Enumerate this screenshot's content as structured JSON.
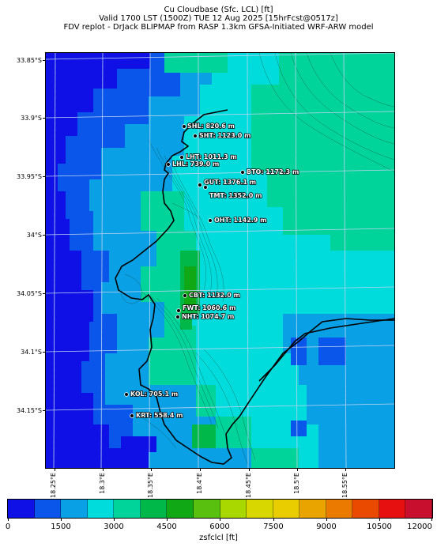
{
  "title_lines": [
    "Cu Cloudbase (Sfc. LCL) [ft]",
    "Valid 1700 LST (1500Z) TUE 12 Aug 2025 [15hrFcst@0517z]",
    "FDV replot - DrJack BLIPMAP from RASP 1.3km GFSA-Initiated WRF-ARW model"
  ],
  "lat_labels": [
    "33.85°S",
    "33.9°S",
    "33.95°S",
    "34°S",
    "34.05°S",
    "34.1°S",
    "34.15°S"
  ],
  "lon_labels": [
    "18.25°E",
    "18.3°E",
    "18.35°E",
    "18.4°E",
    "18.45°E",
    "18.5°E",
    "18.55°E"
  ],
  "stations": [
    {
      "label": "SHL: 820.6 m"
    },
    {
      "label": "SHT: 1123.0 m"
    },
    {
      "label": "LHT: 1011.3 m"
    },
    {
      "label": "LHL: 739.0 m"
    },
    {
      "label": "BTO: 1172.3 m"
    },
    {
      "label": "GUT: 1376.1 m"
    },
    {
      "label": "TMT: 1352.0 m"
    },
    {
      "label": "OHT: 1142.9 m"
    },
    {
      "label": "CBT: 1132.0 m"
    },
    {
      "label": "FWT: 1060.6 m"
    },
    {
      "label": "NHT: 1074.7 m"
    },
    {
      "label": "KOL: 705.1 m"
    },
    {
      "label": "KRT: 558.4 m"
    }
  ],
  "colorbar": {
    "colors": [
      "#0f10e6",
      "#0a55ea",
      "#0aa0e6",
      "#00dcdc",
      "#00d49a",
      "#00b84a",
      "#10a814",
      "#5ac010",
      "#a8d800",
      "#d8d800",
      "#eacd00",
      "#eaa400",
      "#ea7a00",
      "#ea4a00",
      "#e61010",
      "#c8102e"
    ],
    "tick_labels": [
      "0",
      "1500",
      "3000",
      "4500",
      "6000",
      "7500",
      "9000",
      "10500",
      "12000"
    ],
    "label": "zsfclcl [ft]"
  }
}
